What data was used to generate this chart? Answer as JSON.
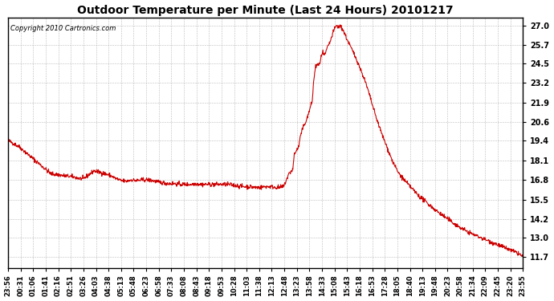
{
  "title": "Outdoor Temperature per Minute (Last 24 Hours) 20101217",
  "copyright_text": "Copyright 2010 Cartronics.com",
  "line_color": "#cc0000",
  "background_color": "#ffffff",
  "grid_color": "#aaaaaa",
  "y_ticks": [
    11.7,
    13.0,
    14.2,
    15.5,
    16.8,
    18.1,
    19.4,
    20.6,
    21.9,
    23.2,
    24.5,
    25.7,
    27.0
  ],
  "ylim": [
    11.0,
    27.5
  ],
  "x_tick_labels": [
    "23:56",
    "00:31",
    "01:06",
    "01:41",
    "02:16",
    "02:51",
    "03:26",
    "04:03",
    "04:38",
    "05:13",
    "05:48",
    "06:23",
    "06:58",
    "07:33",
    "08:08",
    "08:43",
    "09:18",
    "09:53",
    "10:28",
    "11:03",
    "11:38",
    "12:13",
    "12:48",
    "13:23",
    "13:58",
    "14:33",
    "15:08",
    "15:43",
    "16:18",
    "16:53",
    "17:28",
    "18:05",
    "18:40",
    "19:13",
    "19:48",
    "20:23",
    "20:58",
    "21:34",
    "22:09",
    "22:45",
    "23:20",
    "23:55"
  ],
  "control_points": [
    [
      0,
      19.4
    ],
    [
      30,
      19.0
    ],
    [
      60,
      18.4
    ],
    [
      90,
      17.8
    ],
    [
      120,
      17.2
    ],
    [
      150,
      17.1
    ],
    [
      180,
      17.0
    ],
    [
      210,
      16.85
    ],
    [
      240,
      17.4
    ],
    [
      265,
      17.25
    ],
    [
      285,
      17.1
    ],
    [
      300,
      16.9
    ],
    [
      315,
      16.75
    ],
    [
      330,
      16.7
    ],
    [
      345,
      16.8
    ],
    [
      360,
      16.75
    ],
    [
      375,
      16.8
    ],
    [
      390,
      16.8
    ],
    [
      405,
      16.75
    ],
    [
      420,
      16.65
    ],
    [
      435,
      16.6
    ],
    [
      450,
      16.55
    ],
    [
      465,
      16.55
    ],
    [
      480,
      16.5
    ],
    [
      495,
      16.5
    ],
    [
      510,
      16.5
    ],
    [
      525,
      16.55
    ],
    [
      540,
      16.5
    ],
    [
      555,
      16.5
    ],
    [
      570,
      16.5
    ],
    [
      585,
      16.5
    ],
    [
      600,
      16.5
    ],
    [
      615,
      16.5
    ],
    [
      630,
      16.45
    ],
    [
      645,
      16.4
    ],
    [
      660,
      16.35
    ],
    [
      675,
      16.35
    ],
    [
      690,
      16.3
    ],
    [
      705,
      16.3
    ],
    [
      720,
      16.35
    ],
    [
      735,
      16.35
    ],
    [
      750,
      16.3
    ],
    [
      760,
      16.3
    ],
    [
      770,
      16.35
    ],
    [
      785,
      17.2
    ],
    [
      800,
      18.5
    ],
    [
      815,
      19.5
    ],
    [
      825,
      20.3
    ],
    [
      835,
      20.8
    ],
    [
      840,
      21.2
    ],
    [
      850,
      22.0
    ],
    [
      855,
      23.5
    ],
    [
      860,
      24.4
    ],
    [
      862,
      24.2
    ],
    [
      865,
      24.5
    ],
    [
      868,
      24.3
    ],
    [
      872,
      24.6
    ],
    [
      876,
      25.0
    ],
    [
      880,
      25.2
    ],
    [
      884,
      25.0
    ],
    [
      888,
      25.2
    ],
    [
      892,
      25.5
    ],
    [
      796,
      17.5
    ],
    [
      898,
      25.8
    ],
    [
      903,
      26.1
    ],
    [
      908,
      26.5
    ],
    [
      813,
      19.0
    ],
    [
      913,
      26.8
    ],
    [
      918,
      27.0
    ],
    [
      922,
      26.85
    ],
    [
      926,
      26.95
    ],
    [
      930,
      26.9
    ],
    [
      935,
      26.75
    ],
    [
      940,
      26.5
    ],
    [
      945,
      26.2
    ],
    [
      955,
      25.7
    ],
    [
      965,
      25.2
    ],
    [
      975,
      24.7
    ],
    [
      985,
      24.1
    ],
    [
      995,
      23.5
    ],
    [
      1005,
      22.8
    ],
    [
      1015,
      22.0
    ],
    [
      1025,
      21.2
    ],
    [
      1035,
      20.5
    ],
    [
      1045,
      19.8
    ],
    [
      1055,
      19.2
    ],
    [
      1065,
      18.6
    ],
    [
      1075,
      18.0
    ],
    [
      1090,
      17.3
    ],
    [
      1110,
      16.7
    ],
    [
      1130,
      16.2
    ],
    [
      1150,
      15.7
    ],
    [
      1170,
      15.3
    ],
    [
      1200,
      14.7
    ],
    [
      1230,
      14.2
    ],
    [
      1260,
      13.7
    ],
    [
      1290,
      13.3
    ],
    [
      1320,
      13.0
    ],
    [
      1350,
      12.7
    ],
    [
      1380,
      12.4
    ],
    [
      1410,
      12.1
    ],
    [
      1430,
      11.9
    ],
    [
      1439,
      11.7
    ]
  ]
}
